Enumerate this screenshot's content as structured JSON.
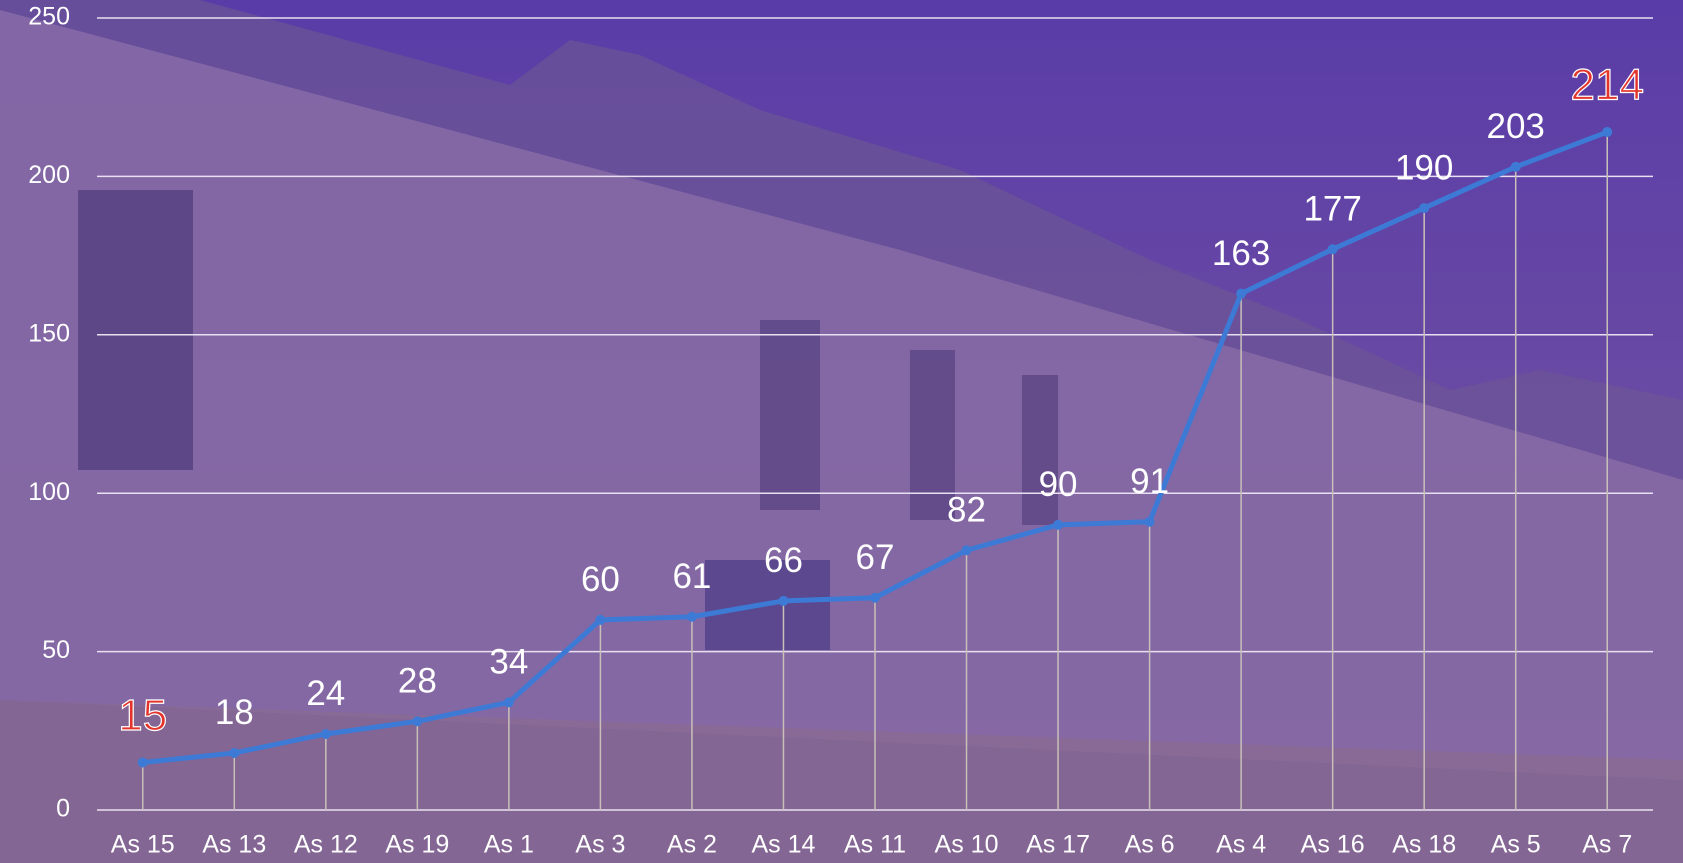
{
  "chart_data": {
    "type": "line",
    "categories": [
      "As 15",
      "As 13",
      "As 12",
      "As 19",
      "As 1",
      "As 3",
      "As 2",
      "As 14",
      "As 11",
      "As 10",
      "As 17",
      "As 6",
      "As 4",
      "As 16",
      "As 18",
      "As 5",
      "As 7"
    ],
    "series": [
      {
        "color": "#3d7ad6",
        "values": [
          15,
          18,
          24,
          28,
          34,
          60,
          61,
          66,
          67,
          82,
          90,
          91,
          163,
          177,
          190,
          203,
          214
        ]
      }
    ],
    "ylim": [
      0,
      250
    ],
    "yticks": [
      0,
      50,
      100,
      150,
      200,
      250
    ],
    "grid": true,
    "value_label_color": "#ffffff",
    "min_max_label_color": "#e3332b"
  }
}
